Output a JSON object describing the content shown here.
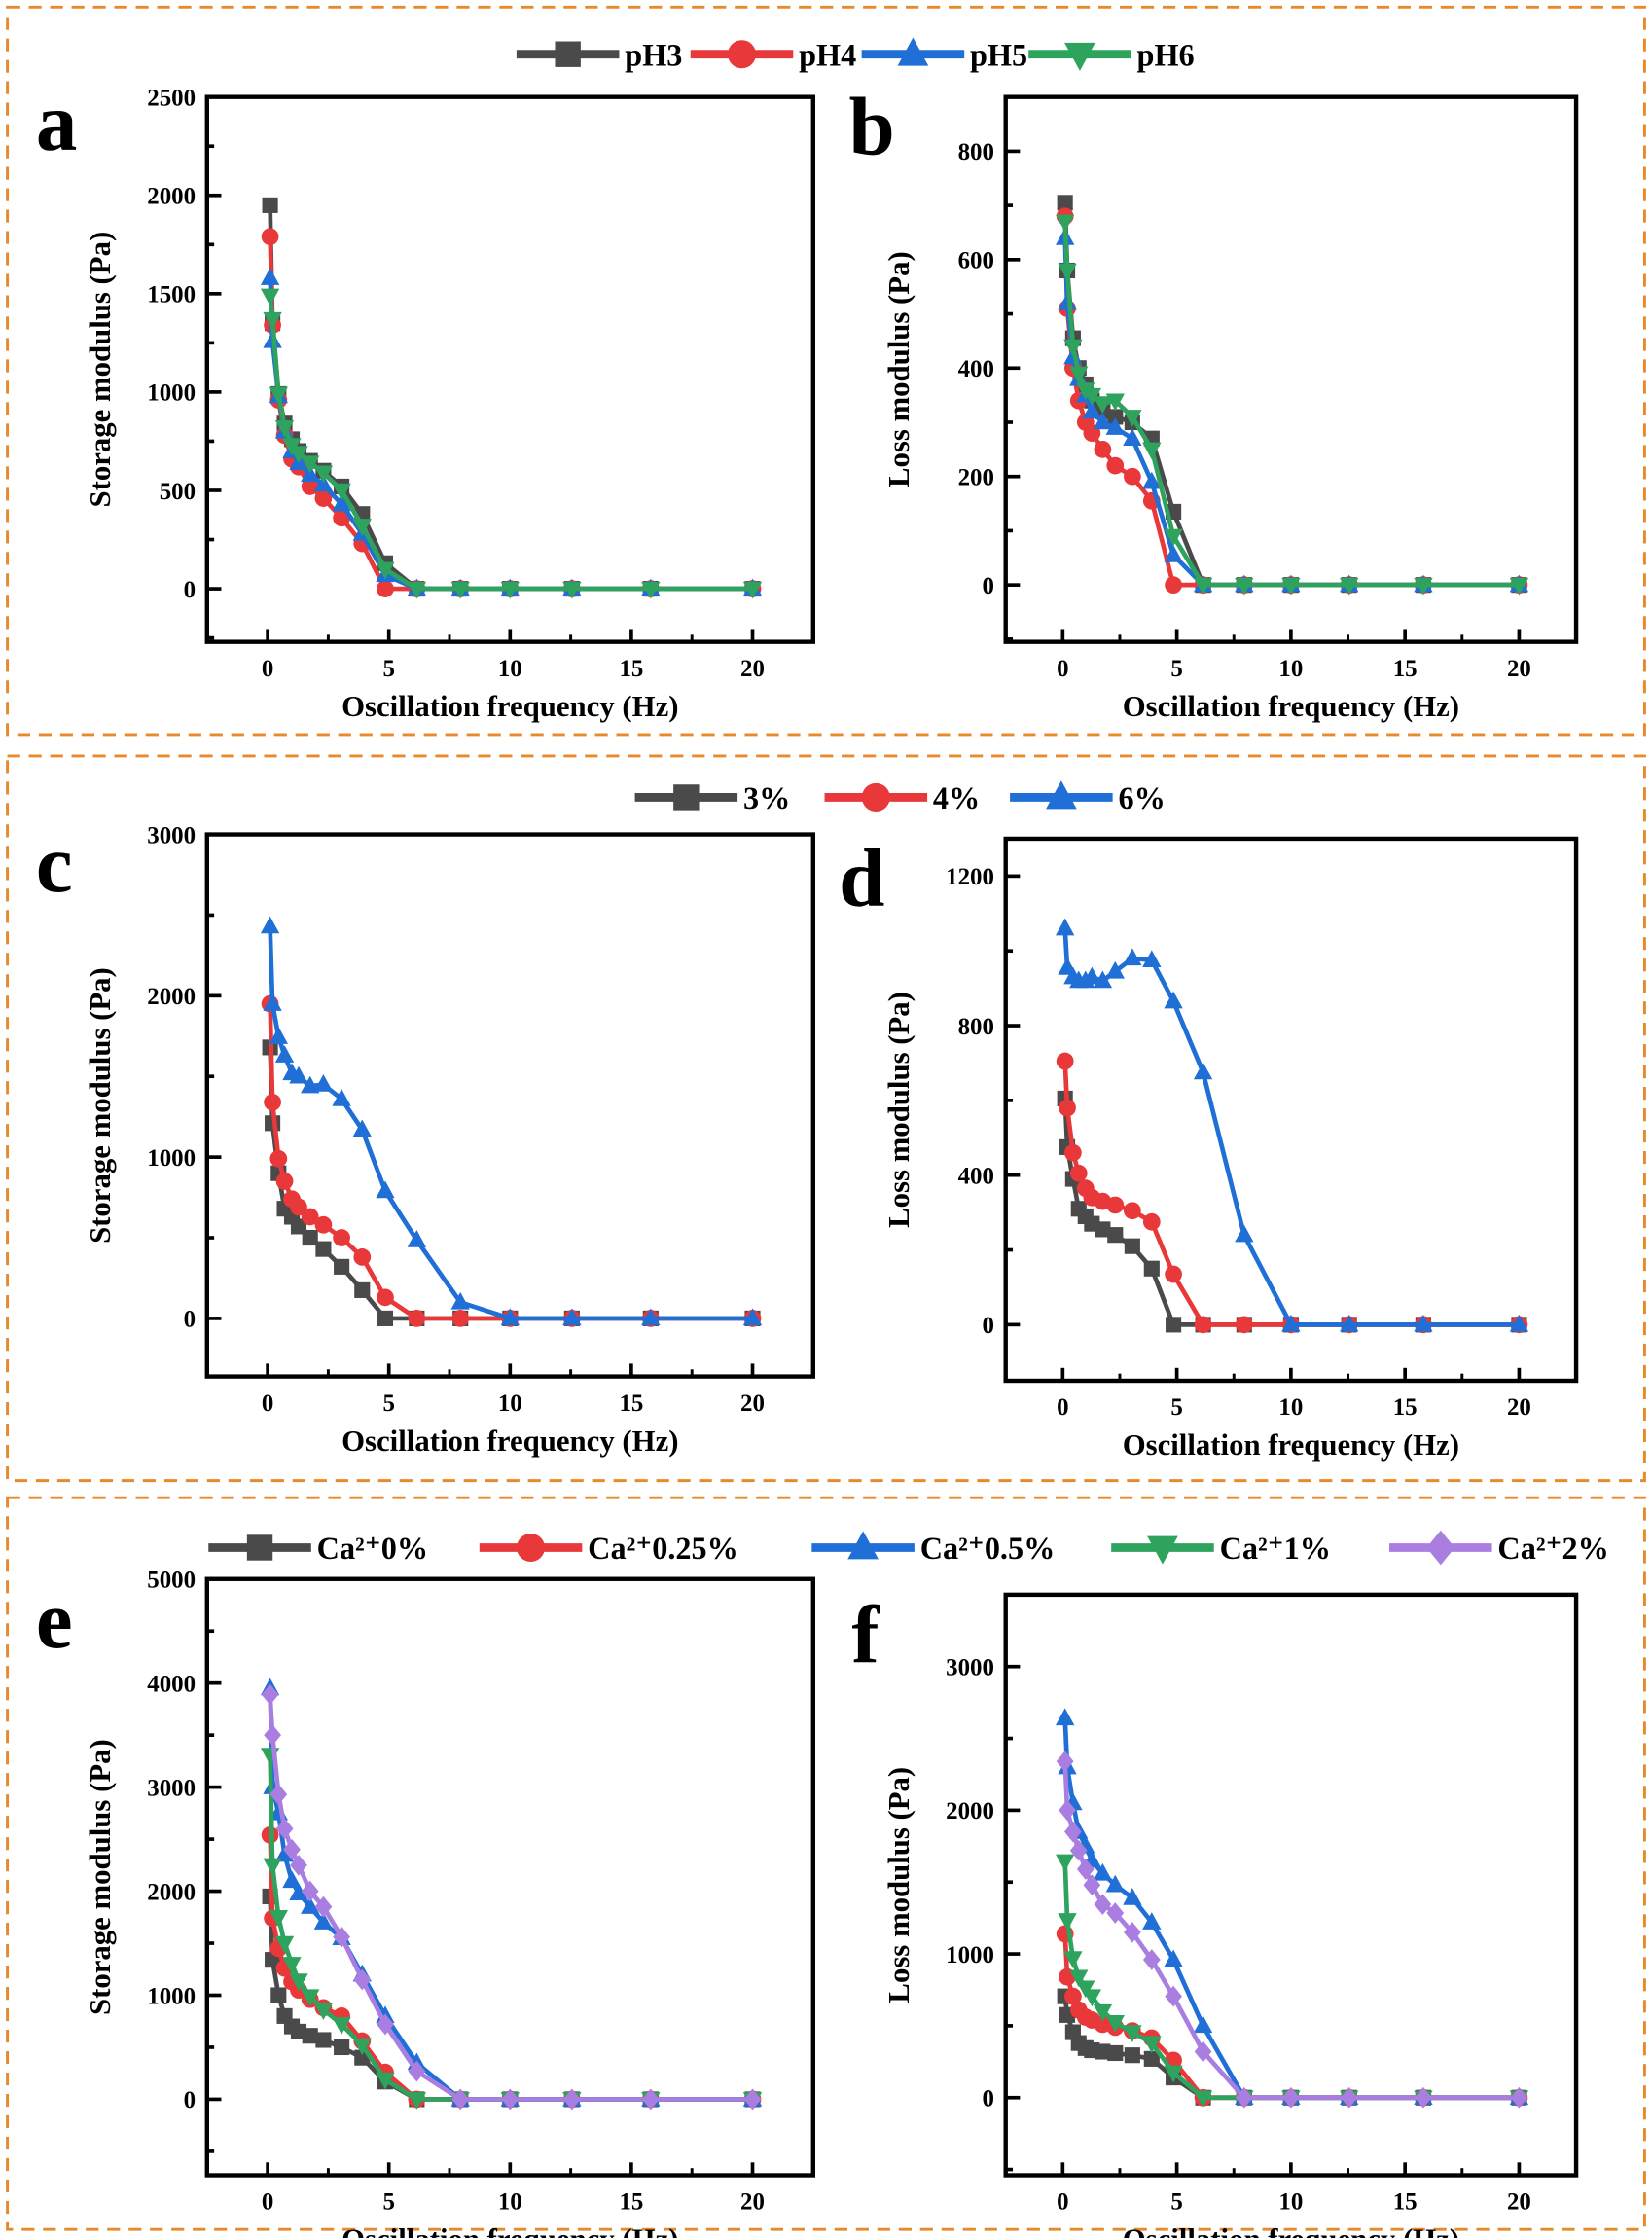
{
  "series_styles": {
    "colors": {
      "square": "#4a4a4a",
      "circle": "#e8383a",
      "triangle-up": "#1f6fd6",
      "triangle-down": "#2ea35e",
      "diamond": "#a97ee0"
    }
  },
  "legends": [
    {
      "items": [
        {
          "label": "pH3",
          "marker": "square"
        },
        {
          "label": "pH4",
          "marker": "circle"
        },
        {
          "label": "pH5",
          "marker": "triangle-up"
        },
        {
          "label": "pH6",
          "marker": "triangle-down"
        }
      ]
    },
    {
      "items": [
        {
          "label": "3%",
          "marker": "square"
        },
        {
          "label": "4%",
          "marker": "circle"
        },
        {
          "label": "6%",
          "marker": "triangle-up"
        }
      ]
    },
    {
      "items": [
        {
          "label": "Ca²⁺0%",
          "marker": "square"
        },
        {
          "label": "Ca²⁺0.25%",
          "marker": "circle"
        },
        {
          "label": "Ca²⁺0.5%",
          "marker": "triangle-up"
        },
        {
          "label": "Ca²⁺1%",
          "marker": "triangle-down"
        },
        {
          "label": "Ca²⁺2%",
          "marker": "diamond"
        }
      ]
    }
  ],
  "chart_data": [
    {
      "panel": "a",
      "type": "line",
      "xlabel": "Oscillation frequency (Hz)",
      "ylabel": "Storage modulus (Pa)",
      "xlim": [
        -2.5,
        22.5
      ],
      "ylim": [
        -270,
        2500
      ],
      "xticks": [
        0,
        5,
        10,
        15,
        20
      ],
      "yticks": [
        0,
        500,
        1000,
        1500,
        2000,
        2500
      ],
      "x": [
        0.1,
        0.2,
        0.45,
        0.7,
        1,
        1.28,
        1.75,
        2.3,
        3.05,
        3.9,
        4.85,
        6.15,
        7.95,
        10,
        12.55,
        15.8,
        20
      ],
      "series": [
        {
          "name": "pH3",
          "marker": "square",
          "values": [
            1950,
            1350,
            990,
            840,
            760,
            700,
            650,
            600,
            520,
            380,
            130,
            0,
            0,
            0,
            0,
            0,
            0
          ]
        },
        {
          "name": "pH4",
          "marker": "circle",
          "values": [
            1790,
            1340,
            960,
            780,
            660,
            620,
            520,
            460,
            360,
            230,
            0,
            0,
            0,
            0,
            0,
            0,
            0
          ]
        },
        {
          "name": "pH5",
          "marker": "triangle-up",
          "values": [
            1580,
            1260,
            980,
            800,
            700,
            640,
            580,
            530,
            430,
            280,
            70,
            0,
            0,
            0,
            0,
            0,
            0
          ]
        },
        {
          "name": "pH6",
          "marker": "triangle-down",
          "values": [
            1490,
            1370,
            990,
            820,
            730,
            690,
            640,
            590,
            500,
            320,
            100,
            0,
            0,
            0,
            0,
            0,
            0
          ]
        }
      ]
    },
    {
      "panel": "b",
      "type": "line",
      "xlabel": "Oscillation frequency (Hz)",
      "ylabel": "Loss modulus (Pa)",
      "xlim": [
        -2.5,
        22.5
      ],
      "ylim": [
        -105,
        900
      ],
      "xticks": [
        0,
        5,
        10,
        15,
        20
      ],
      "yticks": [
        0,
        200,
        400,
        600,
        800
      ],
      "x": [
        0.1,
        0.2,
        0.45,
        0.7,
        1,
        1.28,
        1.75,
        2.3,
        3.05,
        3.9,
        4.85,
        6.15,
        7.95,
        10,
        12.55,
        15.8,
        20
      ],
      "series": [
        {
          "name": "pH3",
          "marker": "square",
          "values": [
            705,
            580,
            455,
            400,
            370,
            340,
            320,
            310,
            300,
            270,
            135,
            0,
            0,
            0,
            0,
            0,
            0
          ]
        },
        {
          "name": "pH4",
          "marker": "circle",
          "values": [
            680,
            510,
            400,
            340,
            300,
            280,
            250,
            220,
            200,
            155,
            0,
            0,
            0,
            0,
            0,
            0,
            0
          ]
        },
        {
          "name": "pH5",
          "marker": "triangle-up",
          "values": [
            640,
            520,
            420,
            380,
            350,
            320,
            300,
            290,
            270,
            190,
            55,
            0,
            0,
            0,
            0,
            0,
            0
          ]
        },
        {
          "name": "pH6",
          "marker": "triangle-down",
          "values": [
            670,
            580,
            440,
            390,
            360,
            350,
            335,
            340,
            310,
            250,
            90,
            0,
            0,
            0,
            0,
            0,
            0
          ]
        }
      ]
    },
    {
      "panel": "c",
      "type": "line",
      "xlabel": "Oscillation frequency (Hz)",
      "ylabel": "Storage modulus (Pa)",
      "xlim": [
        -2.5,
        22.5
      ],
      "ylim": [
        -360,
        3000
      ],
      "xticks": [
        0,
        5,
        10,
        15,
        20
      ],
      "yticks": [
        0,
        1000,
        2000,
        3000
      ],
      "x": [
        0.1,
        0.2,
        0.45,
        0.7,
        1,
        1.28,
        1.75,
        2.3,
        3.05,
        3.9,
        4.85,
        6.15,
        7.95,
        10,
        12.55,
        15.8,
        20
      ],
      "series": [
        {
          "name": "3%",
          "marker": "square",
          "values": [
            1680,
            1210,
            900,
            680,
            630,
            570,
            500,
            430,
            320,
            175,
            0,
            0,
            0,
            0,
            0,
            0,
            0
          ]
        },
        {
          "name": "4%",
          "marker": "circle",
          "values": [
            1950,
            1340,
            990,
            850,
            740,
            690,
            630,
            580,
            500,
            380,
            130,
            0,
            0,
            0,
            0,
            0,
            0
          ]
        },
        {
          "name": "6%",
          "marker": "triangle-up",
          "values": [
            2430,
            1950,
            1745,
            1630,
            1520,
            1500,
            1440,
            1450,
            1360,
            1170,
            790,
            485,
            100,
            0,
            0,
            0,
            0
          ]
        }
      ]
    },
    {
      "panel": "d",
      "type": "line",
      "xlabel": "Oscillation frequency (Hz)",
      "ylabel": "Loss modulus (Pa)",
      "xlim": [
        -2.5,
        22.5
      ],
      "ylim": [
        -150,
        1300
      ],
      "xticks": [
        0,
        5,
        10,
        15,
        20
      ],
      "yticks": [
        0,
        400,
        800,
        1200
      ],
      "x": [
        0.1,
        0.2,
        0.45,
        0.7,
        1,
        1.28,
        1.75,
        2.3,
        3.05,
        3.9,
        4.85,
        6.15,
        7.95,
        10,
        12.55,
        15.8,
        20
      ],
      "series": [
        {
          "name": "3%",
          "marker": "square",
          "values": [
            605,
            475,
            390,
            310,
            290,
            270,
            255,
            240,
            210,
            150,
            0,
            0,
            0,
            0,
            0,
            0,
            0
          ]
        },
        {
          "name": "4%",
          "marker": "circle",
          "values": [
            705,
            580,
            460,
            405,
            365,
            340,
            330,
            320,
            305,
            275,
            135,
            0,
            0,
            0,
            0,
            0,
            0
          ]
        },
        {
          "name": "6%",
          "marker": "triangle-up",
          "values": [
            1060,
            955,
            930,
            920,
            920,
            930,
            920,
            945,
            980,
            975,
            865,
            675,
            240,
            0,
            0,
            0,
            0
          ]
        }
      ]
    },
    {
      "panel": "e",
      "type": "line",
      "xlabel": "Oscillation frequency (Hz)",
      "ylabel": "Storage modulus (Pa)",
      "xlim": [
        -2.5,
        22.5
      ],
      "ylim": [
        -730,
        5000
      ],
      "xticks": [
        0,
        5,
        10,
        15,
        20
      ],
      "yticks": [
        0,
        1000,
        2000,
        3000,
        4000,
        5000
      ],
      "x": [
        0.1,
        0.2,
        0.45,
        0.7,
        1,
        1.28,
        1.75,
        2.3,
        3.05,
        3.9,
        4.85,
        6.15,
        7.95,
        10,
        12.55,
        15.8,
        20
      ],
      "series": [
        {
          "name": "Ca²⁺0%",
          "marker": "square",
          "values": [
            1950,
            1340,
            1000,
            800,
            700,
            650,
            610,
            570,
            500,
            400,
            170,
            0,
            0,
            0,
            0,
            0,
            0
          ]
        },
        {
          "name": "Ca²⁺0.25%",
          "marker": "circle",
          "values": [
            2540,
            1740,
            1450,
            1260,
            1130,
            1050,
            960,
            880,
            800,
            560,
            260,
            0,
            0,
            0,
            0,
            0,
            0
          ]
        },
        {
          "name": "Ca²⁺0.5%",
          "marker": "triangle-up",
          "values": [
            3950,
            3000,
            2750,
            2350,
            2100,
            1980,
            1850,
            1700,
            1550,
            1200,
            800,
            350,
            0,
            0,
            0,
            0,
            0
          ]
        },
        {
          "name": "Ca²⁺1%",
          "marker": "triangle-down",
          "values": [
            3310,
            2250,
            1750,
            1500,
            1300,
            1140,
            990,
            860,
            720,
            520,
            190,
            0,
            0,
            0,
            0,
            0,
            0
          ]
        },
        {
          "name": "Ca²⁺2%",
          "marker": "diamond",
          "values": [
            3890,
            3500,
            2930,
            2600,
            2400,
            2250,
            2000,
            1850,
            1560,
            1150,
            720,
            270,
            0,
            0,
            0,
            0,
            0
          ]
        }
      ]
    },
    {
      "panel": "f",
      "type": "line",
      "xlabel": "Oscillation frequency (Hz)",
      "ylabel": "Loss modulus (Pa)",
      "xlim": [
        -2.5,
        22.5
      ],
      "ylim": [
        -540,
        3500
      ],
      "xticks": [
        0,
        5,
        10,
        15,
        20
      ],
      "yticks": [
        0,
        1000,
        2000,
        3000
      ],
      "x": [
        0.1,
        0.2,
        0.45,
        0.7,
        1,
        1.28,
        1.75,
        2.3,
        3.05,
        3.9,
        4.85,
        6.15,
        7.95,
        10,
        12.55,
        15.8,
        20
      ],
      "series": [
        {
          "name": "Ca²⁺0%",
          "marker": "square",
          "values": [
            705,
            575,
            455,
            380,
            345,
            330,
            320,
            310,
            295,
            270,
            140,
            0,
            0,
            0,
            0,
            0,
            0
          ]
        },
        {
          "name": "Ca²⁺0.25%",
          "marker": "circle",
          "values": [
            1140,
            840,
            705,
            610,
            560,
            540,
            510,
            490,
            465,
            415,
            260,
            0,
            0,
            0,
            0,
            0,
            0
          ]
        },
        {
          "name": "Ca²⁺0.5%",
          "marker": "triangle-up",
          "values": [
            2640,
            2300,
            2050,
            1850,
            1750,
            1650,
            1560,
            1480,
            1390,
            1220,
            960,
            500,
            0,
            0,
            0,
            0,
            0
          ]
        },
        {
          "name": "Ca²⁺1%",
          "marker": "triangle-down",
          "values": [
            1645,
            1235,
            970,
            840,
            765,
            705,
            600,
            525,
            455,
            380,
            175,
            0,
            0,
            0,
            0,
            0,
            0
          ]
        },
        {
          "name": "Ca²⁺2%",
          "marker": "diamond",
          "values": [
            2340,
            2000,
            1850,
            1720,
            1590,
            1480,
            1345,
            1285,
            1150,
            960,
            705,
            320,
            0,
            0,
            0,
            0,
            0
          ]
        }
      ]
    }
  ]
}
